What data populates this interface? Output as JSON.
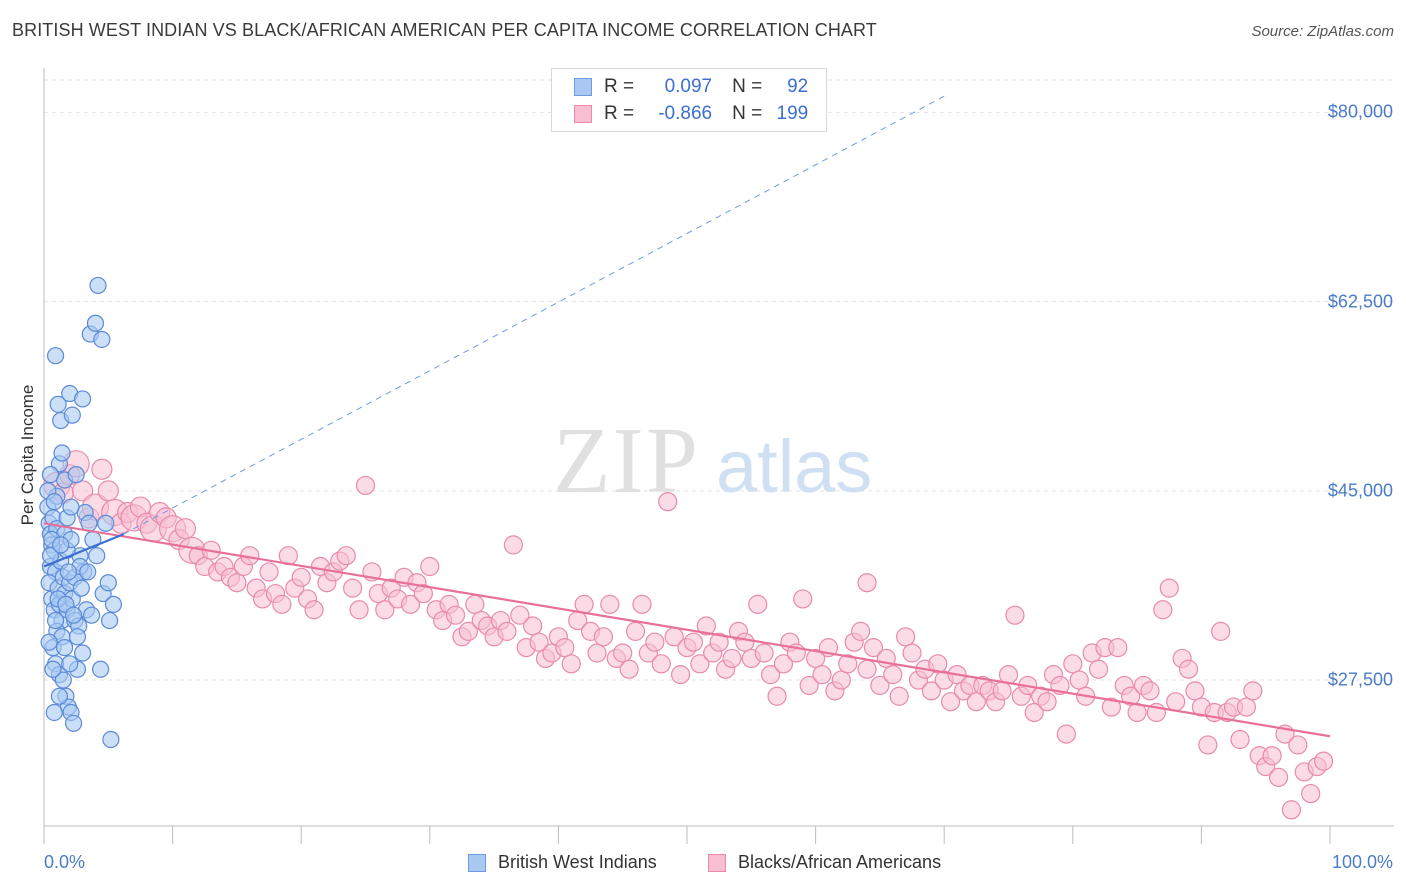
{
  "title": "BRITISH WEST INDIAN VS BLACK/AFRICAN AMERICAN PER CAPITA INCOME CORRELATION CHART",
  "source": "Source: ZipAtlas.com",
  "watermark": {
    "zip": "ZIP",
    "atlas": "atlas"
  },
  "legend": {
    "rows": [
      {
        "r_label": "R =",
        "r_value": "0.097",
        "n_label": "N =",
        "n_value": "92",
        "color": "#a9c9f2",
        "stroke": "#6f9be0"
      },
      {
        "r_label": "R =",
        "r_value": "-0.866",
        "n_label": "N =",
        "n_value": "199",
        "color": "#f7bfd1",
        "stroke": "#e98aab"
      }
    ]
  },
  "bottom_legend": {
    "items": [
      {
        "label": "British West Indians",
        "color": "#a9c9f2",
        "stroke": "#6f9be0"
      },
      {
        "label": "Blacks/African Americans",
        "color": "#f7bfd1",
        "stroke": "#e98aab"
      }
    ]
  },
  "chart_data": {
    "type": "scatter",
    "title": "BRITISH WEST INDIAN VS BLACK/AFRICAN AMERICAN PER CAPITA INCOME CORRELATION CHART",
    "xlabel": "",
    "ylabel": "Per Capita Income",
    "xlim": [
      0,
      100
    ],
    "ylim": [
      14000,
      83000
    ],
    "x_tick_labels": [
      "0.0%",
      "100.0%"
    ],
    "y_ticks": [
      27500,
      45000,
      62500,
      80000
    ],
    "y_tick_labels": [
      "$27,500",
      "$45,000",
      "$62,500",
      "$80,000"
    ],
    "grid": "horizontal dashed",
    "colors": {
      "blue": "#6f9be0",
      "pink": "#e98aab",
      "blue_line": "#3b6fd0",
      "pink_line": "#e8709a"
    },
    "series": [
      {
        "name": "British West Indians",
        "trend": {
          "x": [
            0,
            6.2
          ],
          "y": [
            38000,
            41000
          ]
        },
        "trend_extended": {
          "x": [
            6.2,
            70
          ],
          "y": [
            41000,
            81500
          ]
        },
        "points": [
          [
            0.3,
            43.5
          ],
          [
            0.4,
            42.0
          ],
          [
            0.5,
            41.0
          ],
          [
            0.6,
            40.0
          ],
          [
            0.7,
            42.5
          ],
          [
            0.8,
            39.5
          ],
          [
            0.5,
            38.0
          ],
          [
            0.9,
            37.5
          ],
          [
            1.0,
            41.5
          ],
          [
            0.4,
            36.5
          ],
          [
            0.6,
            35.0
          ],
          [
            0.8,
            34.0
          ],
          [
            1.1,
            36.0
          ],
          [
            1.3,
            38.5
          ],
          [
            1.5,
            37.0
          ],
          [
            1.2,
            34.5
          ],
          [
            1.4,
            33.0
          ],
          [
            1.6,
            35.5
          ],
          [
            1.8,
            34.0
          ],
          [
            2.0,
            36.5
          ],
          [
            2.2,
            35.0
          ],
          [
            1.0,
            32.0
          ],
          [
            0.7,
            30.5
          ],
          [
            0.9,
            29.0
          ],
          [
            1.2,
            28.0
          ],
          [
            1.5,
            27.5
          ],
          [
            1.7,
            26.0
          ],
          [
            1.9,
            25.0
          ],
          [
            2.1,
            24.5
          ],
          [
            2.3,
            23.5
          ],
          [
            0.8,
            24.5
          ],
          [
            1.0,
            44.5
          ],
          [
            1.2,
            47.5
          ],
          [
            1.4,
            48.5
          ],
          [
            1.6,
            46.0
          ],
          [
            0.9,
            57.5
          ],
          [
            1.1,
            53.0
          ],
          [
            1.3,
            51.5
          ],
          [
            2.0,
            54.0
          ],
          [
            2.2,
            52.0
          ],
          [
            3.0,
            53.5
          ],
          [
            3.6,
            59.5
          ],
          [
            4.0,
            60.5
          ],
          [
            4.5,
            59.0
          ],
          [
            4.2,
            64.0
          ],
          [
            2.5,
            46.5
          ],
          [
            3.2,
            43.0
          ],
          [
            3.5,
            42.0
          ],
          [
            2.8,
            39.0
          ],
          [
            3.1,
            37.5
          ],
          [
            2.4,
            33.0
          ],
          [
            2.7,
            32.5
          ],
          [
            3.3,
            34.0
          ],
          [
            3.7,
            33.5
          ],
          [
            4.6,
            35.5
          ],
          [
            5.0,
            36.5
          ],
          [
            5.4,
            34.5
          ],
          [
            5.1,
            33.0
          ],
          [
            4.4,
            28.5
          ],
          [
            5.2,
            22.0
          ],
          [
            2.6,
            28.5
          ],
          [
            1.6,
            41.0
          ],
          [
            1.8,
            39.5
          ],
          [
            2.1,
            40.5
          ],
          [
            0.6,
            40.5
          ],
          [
            0.5,
            39.0
          ],
          [
            1.3,
            40.0
          ],
          [
            1.1,
            35.0
          ],
          [
            2.4,
            37.0
          ],
          [
            2.8,
            38.0
          ],
          [
            1.9,
            37.5
          ],
          [
            1.7,
            34.5
          ],
          [
            2.3,
            33.5
          ],
          [
            0.9,
            33.0
          ],
          [
            1.4,
            31.5
          ],
          [
            1.6,
            30.5
          ],
          [
            0.4,
            31.0
          ],
          [
            0.7,
            28.5
          ],
          [
            1.2,
            26.0
          ],
          [
            2.0,
            29.0
          ],
          [
            1.8,
            42.5
          ],
          [
            2.1,
            43.5
          ],
          [
            0.3,
            45.0
          ],
          [
            0.5,
            46.5
          ],
          [
            0.8,
            44.0
          ],
          [
            3.4,
            37.5
          ],
          [
            2.9,
            36.0
          ],
          [
            3.8,
            40.5
          ],
          [
            4.1,
            39.0
          ],
          [
            4.8,
            42.0
          ],
          [
            2.6,
            31.5
          ],
          [
            3.0,
            30.0
          ]
        ]
      },
      {
        "name": "Blacks/African Americans",
        "trend": {
          "x": [
            0,
            100
          ],
          "y": [
            42000,
            22300
          ]
        },
        "points": [
          [
            1.0,
            45.5
          ],
          [
            1.5,
            44.8
          ],
          [
            2.0,
            46.5
          ],
          [
            2.5,
            47.5
          ],
          [
            3.0,
            45.0
          ],
          [
            3.5,
            42.5
          ],
          [
            4.0,
            43.5
          ],
          [
            4.5,
            47.0
          ],
          [
            5.0,
            45.0
          ],
          [
            5.5,
            43.0
          ],
          [
            6.0,
            42.0
          ],
          [
            6.5,
            43.0
          ],
          [
            7.0,
            42.5
          ],
          [
            7.5,
            43.5
          ],
          [
            8.0,
            42.0
          ],
          [
            8.5,
            41.5
          ],
          [
            9.0,
            43.0
          ],
          [
            9.5,
            42.5
          ],
          [
            10.0,
            41.5
          ],
          [
            10.5,
            40.5
          ],
          [
            11.0,
            41.5
          ],
          [
            11.5,
            39.5
          ],
          [
            12.0,
            39.0
          ],
          [
            12.5,
            38.0
          ],
          [
            13.0,
            39.5
          ],
          [
            13.5,
            37.5
          ],
          [
            14.0,
            38.0
          ],
          [
            14.5,
            37.0
          ],
          [
            15.0,
            36.5
          ],
          [
            15.5,
            38.0
          ],
          [
            16.0,
            39.0
          ],
          [
            16.5,
            36.0
          ],
          [
            17.0,
            35.0
          ],
          [
            17.5,
            37.5
          ],
          [
            18.0,
            35.5
          ],
          [
            18.5,
            34.5
          ],
          [
            19.0,
            39.0
          ],
          [
            19.5,
            36.0
          ],
          [
            20.0,
            37.0
          ],
          [
            20.5,
            35.0
          ],
          [
            21.0,
            34.0
          ],
          [
            21.5,
            38.0
          ],
          [
            22.0,
            36.5
          ],
          [
            22.5,
            37.5
          ],
          [
            23.0,
            38.5
          ],
          [
            23.5,
            39.0
          ],
          [
            24.0,
            36.0
          ],
          [
            24.5,
            34.0
          ],
          [
            25.0,
            45.5
          ],
          [
            25.5,
            37.5
          ],
          [
            26.0,
            35.5
          ],
          [
            26.5,
            34.0
          ],
          [
            27.0,
            36.0
          ],
          [
            27.5,
            35.0
          ],
          [
            28.0,
            37.0
          ],
          [
            28.5,
            34.5
          ],
          [
            29.0,
            36.5
          ],
          [
            29.5,
            35.5
          ],
          [
            30.0,
            38.0
          ],
          [
            30.5,
            34.0
          ],
          [
            31.0,
            33.0
          ],
          [
            31.5,
            34.5
          ],
          [
            32.0,
            33.5
          ],
          [
            32.5,
            31.5
          ],
          [
            33.0,
            32.0
          ],
          [
            33.5,
            34.5
          ],
          [
            34.0,
            33.0
          ],
          [
            34.5,
            32.5
          ],
          [
            35.0,
            31.5
          ],
          [
            35.5,
            33.0
          ],
          [
            36.0,
            32.0
          ],
          [
            36.5,
            40.0
          ],
          [
            37.0,
            33.5
          ],
          [
            37.5,
            30.5
          ],
          [
            38.0,
            32.5
          ],
          [
            38.5,
            31.0
          ],
          [
            39.0,
            29.5
          ],
          [
            39.5,
            30.0
          ],
          [
            40.0,
            31.5
          ],
          [
            40.5,
            30.5
          ],
          [
            41.0,
            29.0
          ],
          [
            41.5,
            33.0
          ],
          [
            42.0,
            34.5
          ],
          [
            42.5,
            32.0
          ],
          [
            43.0,
            30.0
          ],
          [
            43.5,
            31.5
          ],
          [
            44.0,
            34.5
          ],
          [
            44.5,
            29.5
          ],
          [
            45.0,
            30.0
          ],
          [
            45.5,
            28.5
          ],
          [
            46.0,
            32.0
          ],
          [
            46.5,
            34.5
          ],
          [
            47.0,
            30.0
          ],
          [
            47.5,
            31.0
          ],
          [
            48.0,
            29.0
          ],
          [
            48.5,
            44.0
          ],
          [
            49.0,
            31.5
          ],
          [
            49.5,
            28.0
          ],
          [
            50.0,
            30.5
          ],
          [
            50.5,
            31.0
          ],
          [
            51.0,
            29.0
          ],
          [
            51.5,
            32.5
          ],
          [
            52.0,
            30.0
          ],
          [
            52.5,
            31.0
          ],
          [
            53.0,
            28.5
          ],
          [
            53.5,
            29.5
          ],
          [
            54.0,
            32.0
          ],
          [
            54.5,
            31.0
          ],
          [
            55.0,
            29.5
          ],
          [
            55.5,
            34.5
          ],
          [
            56.0,
            30.0
          ],
          [
            56.5,
            28.0
          ],
          [
            57.0,
            26.0
          ],
          [
            57.5,
            29.0
          ],
          [
            58.0,
            31.0
          ],
          [
            58.5,
            30.0
          ],
          [
            59.0,
            35.0
          ],
          [
            59.5,
            27.0
          ],
          [
            60.0,
            29.5
          ],
          [
            60.5,
            28.0
          ],
          [
            61.0,
            30.5
          ],
          [
            61.5,
            26.5
          ],
          [
            62.0,
            27.5
          ],
          [
            62.5,
            29.0
          ],
          [
            63.0,
            31.0
          ],
          [
            63.5,
            32.0
          ],
          [
            64.0,
            28.5
          ],
          [
            64.5,
            30.5
          ],
          [
            65.0,
            27.0
          ],
          [
            65.5,
            29.5
          ],
          [
            66.0,
            28.0
          ],
          [
            66.5,
            26.0
          ],
          [
            67.0,
            31.5
          ],
          [
            67.5,
            30.0
          ],
          [
            68.0,
            27.5
          ],
          [
            68.5,
            28.5
          ],
          [
            69.0,
            26.5
          ],
          [
            69.5,
            29.0
          ],
          [
            70.0,
            27.5
          ],
          [
            70.5,
            25.5
          ],
          [
            71.0,
            28.0
          ],
          [
            71.5,
            26.5
          ],
          [
            72.0,
            27.0
          ],
          [
            72.5,
            25.5
          ],
          [
            73.0,
            27.0
          ],
          [
            73.5,
            26.5
          ],
          [
            74.0,
            25.5
          ],
          [
            74.5,
            26.5
          ],
          [
            75.0,
            28.0
          ],
          [
            75.5,
            33.5
          ],
          [
            76.0,
            26.0
          ],
          [
            76.5,
            27.0
          ],
          [
            77.0,
            24.5
          ],
          [
            77.5,
            26.0
          ],
          [
            78.0,
            25.5
          ],
          [
            78.5,
            28.0
          ],
          [
            79.0,
            27.0
          ],
          [
            79.5,
            22.5
          ],
          [
            80.0,
            29.0
          ],
          [
            80.5,
            27.5
          ],
          [
            81.0,
            26.0
          ],
          [
            81.5,
            30.0
          ],
          [
            82.0,
            28.5
          ],
          [
            82.5,
            30.5
          ],
          [
            83.0,
            25.0
          ],
          [
            83.5,
            30.5
          ],
          [
            84.0,
            27.0
          ],
          [
            84.5,
            26.0
          ],
          [
            85.0,
            24.5
          ],
          [
            85.5,
            27.0
          ],
          [
            86.0,
            26.5
          ],
          [
            86.5,
            24.5
          ],
          [
            87.0,
            34.0
          ],
          [
            87.5,
            36.0
          ],
          [
            88.0,
            25.5
          ],
          [
            88.5,
            29.5
          ],
          [
            89.0,
            28.5
          ],
          [
            89.5,
            26.5
          ],
          [
            90.0,
            25.0
          ],
          [
            90.5,
            21.5
          ],
          [
            91.0,
            24.5
          ],
          [
            91.5,
            32.0
          ],
          [
            92.0,
            24.5
          ],
          [
            92.5,
            25.0
          ],
          [
            93.0,
            22.0
          ],
          [
            93.5,
            25.0
          ],
          [
            94.0,
            26.5
          ],
          [
            94.5,
            20.5
          ],
          [
            95.0,
            19.5
          ],
          [
            95.5,
            20.5
          ],
          [
            96.0,
            18.5
          ],
          [
            96.5,
            22.5
          ],
          [
            97.0,
            15.5
          ],
          [
            97.5,
            21.5
          ],
          [
            98.0,
            19.0
          ],
          [
            98.5,
            17.0
          ],
          [
            99.0,
            19.5
          ],
          [
            99.5,
            20.0
          ],
          [
            64.0,
            36.5
          ]
        ]
      }
    ]
  }
}
